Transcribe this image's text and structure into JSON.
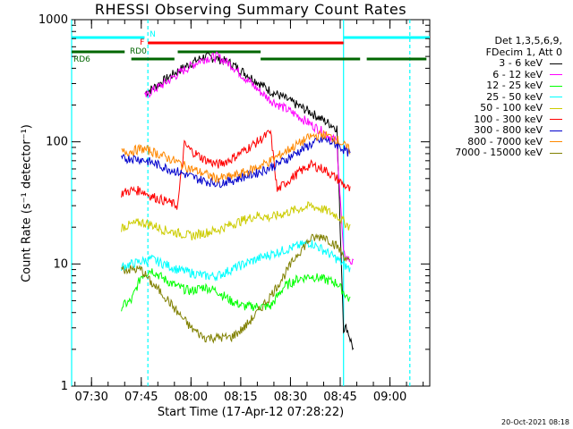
{
  "chart_data": {
    "type": "line",
    "title": "RHESSI Observing Summary Count Rates",
    "xlabel": "Start Time (17-Apr-12 07:28:22)",
    "ylabel": "Count Rate (s⁻¹ detector⁻¹)",
    "yscale": "log",
    "ylim": [
      1,
      1000
    ],
    "xlim": [
      "07:24",
      "09:12"
    ],
    "x_tick_labels": [
      "07:30",
      "07:45",
      "08:00",
      "08:15",
      "08:30",
      "08:45",
      "09:00"
    ],
    "y_tick_labels": [
      "1",
      "10",
      "100",
      "1000"
    ],
    "grid": false,
    "legend_header": [
      "Det 1,3,5,6,9,",
      "FDecim 1, Att 0"
    ],
    "legend_position": "right",
    "series": [
      {
        "name": "3 - 6 keV",
        "color": "#000000",
        "x": [
          "07:38",
          "07:41",
          "07:44",
          "07:46",
          "07:48",
          "07:52",
          "07:56",
          "08:00",
          "08:04",
          "08:08",
          "08:12",
          "08:16",
          "08:20",
          "08:24",
          "08:28",
          "08:32",
          "08:36",
          "08:40",
          "08:44",
          "08:46",
          "08:47",
          "08:49"
        ],
        "y": [
          null,
          null,
          null,
          250,
          270,
          320,
          380,
          440,
          500,
          480,
          440,
          370,
          310,
          260,
          230,
          200,
          175,
          150,
          130,
          3,
          3,
          2
        ]
      },
      {
        "name": "6 - 12 keV",
        "color": "#ff00ff",
        "x": [
          "07:46",
          "07:48",
          "07:52",
          "07:56",
          "08:00",
          "08:04",
          "08:08",
          "08:12",
          "08:16",
          "08:20",
          "08:24",
          "08:28",
          "08:32",
          "08:36",
          "08:40",
          "08:44",
          "08:46",
          "08:49"
        ],
        "y": [
          230,
          260,
          300,
          360,
          420,
          480,
          500,
          430,
          340,
          270,
          220,
          190,
          165,
          140,
          120,
          100,
          12,
          10
        ]
      },
      {
        "name": "12 - 25 keV",
        "color": "#00ff00",
        "x": [
          "07:39",
          "07:42",
          "07:45",
          "07:48",
          "07:52",
          "07:56",
          "08:00",
          "08:04",
          "08:08",
          "08:12",
          "08:16",
          "08:20",
          "08:24",
          "08:28",
          "08:32",
          "08:36",
          "08:40",
          "08:44",
          "08:48"
        ],
        "y": [
          4.5,
          5,
          8,
          9,
          7.5,
          6.5,
          6,
          6.5,
          6,
          5,
          4.5,
          4.5,
          4.5,
          6.5,
          7.5,
          8,
          7.5,
          7,
          5
        ]
      },
      {
        "name": "25 - 50 keV",
        "color": "#00ffff",
        "x": [
          "07:39",
          "07:42",
          "07:45",
          "07:48",
          "07:52",
          "07:56",
          "08:00",
          "08:04",
          "08:08",
          "08:12",
          "08:16",
          "08:20",
          "08:24",
          "08:28",
          "08:32",
          "08:36",
          "08:40",
          "08:44",
          "08:48"
        ],
        "y": [
          9.5,
          10,
          10.5,
          11,
          10,
          9,
          8.5,
          8,
          8,
          9,
          10,
          11,
          12,
          13,
          14,
          15,
          13,
          11,
          9
        ]
      },
      {
        "name": "50 - 100 keV",
        "color": "#cccc00",
        "x": [
          "07:39",
          "07:42",
          "07:45",
          "07:48",
          "07:52",
          "07:56",
          "08:00",
          "08:04",
          "08:08",
          "08:12",
          "08:16",
          "08:20",
          "08:24",
          "08:28",
          "08:32",
          "08:36",
          "08:40",
          "08:44",
          "08:48"
        ],
        "y": [
          20,
          21,
          22,
          21,
          19,
          18,
          17,
          18,
          19,
          21,
          23,
          25,
          24,
          26,
          28,
          30,
          28,
          25,
          20
        ]
      },
      {
        "name": "100 - 300 keV",
        "color": "#ff0000",
        "x": [
          "07:39",
          "07:42",
          "07:45",
          "07:48",
          "07:52",
          "07:56",
          "07:58",
          "08:00",
          "08:04",
          "08:08",
          "08:12",
          "08:16",
          "08:20",
          "08:24",
          "08:26",
          "08:28",
          "08:32",
          "08:36",
          "08:40",
          "08:44",
          "08:48"
        ],
        "y": [
          38,
          40,
          40,
          36,
          33,
          30,
          95,
          85,
          72,
          65,
          72,
          85,
          100,
          120,
          40,
          45,
          55,
          65,
          60,
          50,
          40
        ]
      },
      {
        "name": "300 - 800 keV",
        "color": "#0000cc",
        "x": [
          "07:39",
          "07:42",
          "07:45",
          "07:48",
          "07:52",
          "07:56",
          "08:00",
          "08:04",
          "08:08",
          "08:12",
          "08:16",
          "08:20",
          "08:24",
          "08:28",
          "08:32",
          "08:36",
          "08:40",
          "08:44",
          "08:48"
        ],
        "y": [
          72,
          74,
          72,
          68,
          62,
          57,
          52,
          48,
          46,
          48,
          52,
          56,
          62,
          70,
          82,
          95,
          105,
          95,
          80
        ]
      },
      {
        "name": "800 - 7000 keV",
        "color": "#ff8800",
        "x": [
          "07:39",
          "07:42",
          "07:45",
          "07:48",
          "07:52",
          "07:56",
          "08:00",
          "08:04",
          "08:08",
          "08:12",
          "08:16",
          "08:20",
          "08:24",
          "08:28",
          "08:32",
          "08:36",
          "08:40",
          "08:44",
          "08:48"
        ],
        "y": [
          82,
          84,
          88,
          84,
          76,
          68,
          60,
          55,
          50,
          52,
          56,
          62,
          70,
          82,
          95,
          110,
          115,
          105,
          85
        ]
      },
      {
        "name": "7000 - 15000 keV",
        "color": "#808000",
        "x": [
          "07:39",
          "07:42",
          "07:45",
          "07:48",
          "07:52",
          "07:56",
          "08:00",
          "08:04",
          "08:08",
          "08:12",
          "08:16",
          "08:20",
          "08:24",
          "08:28",
          "08:32",
          "08:36",
          "08:40",
          "08:44",
          "08:48"
        ],
        "y": [
          9,
          9,
          9,
          7,
          5.5,
          4,
          3,
          2.5,
          2.5,
          2.5,
          3,
          4,
          5.5,
          8,
          12,
          16,
          17,
          14,
          10
        ]
      }
    ],
    "annotations": [
      {
        "label": "N",
        "color": "#00ffff"
      },
      {
        "label": "F",
        "color": "#ff0000"
      },
      {
        "label": "RD0",
        "color": "#006600"
      },
      {
        "label": "RD6",
        "color": "#006600"
      }
    ],
    "bars": [
      {
        "label": "N",
        "color": "#00ffff",
        "segments": [
          [
            "07:24",
            "07:46"
          ],
          [
            "08:46",
            "09:12"
          ]
        ]
      },
      {
        "label": "F",
        "color": "#ff0000",
        "segments": [
          [
            "07:47",
            "08:46"
          ]
        ]
      },
      {
        "label": "RD0",
        "color": "#006600",
        "segments": [
          [
            "07:24",
            "07:40"
          ],
          [
            "07:56",
            "08:21"
          ]
        ]
      },
      {
        "label": "RD6",
        "color": "#006600",
        "segments": [
          [
            "07:42",
            "07:55"
          ],
          [
            "08:21",
            "08:51"
          ],
          [
            "08:53",
            "09:11"
          ]
        ]
      }
    ],
    "vlines": [
      {
        "time": "07:24",
        "color": "#00ffff",
        "style": "solid"
      },
      {
        "time": "07:47",
        "color": "#00ffff",
        "style": "dashed"
      },
      {
        "time": "08:46",
        "color": "#00ffff",
        "style": "solid"
      },
      {
        "time": "09:06",
        "color": "#00ffff",
        "style": "dashed"
      }
    ]
  },
  "footer_stamp": "20-Oct-2021 08:18"
}
